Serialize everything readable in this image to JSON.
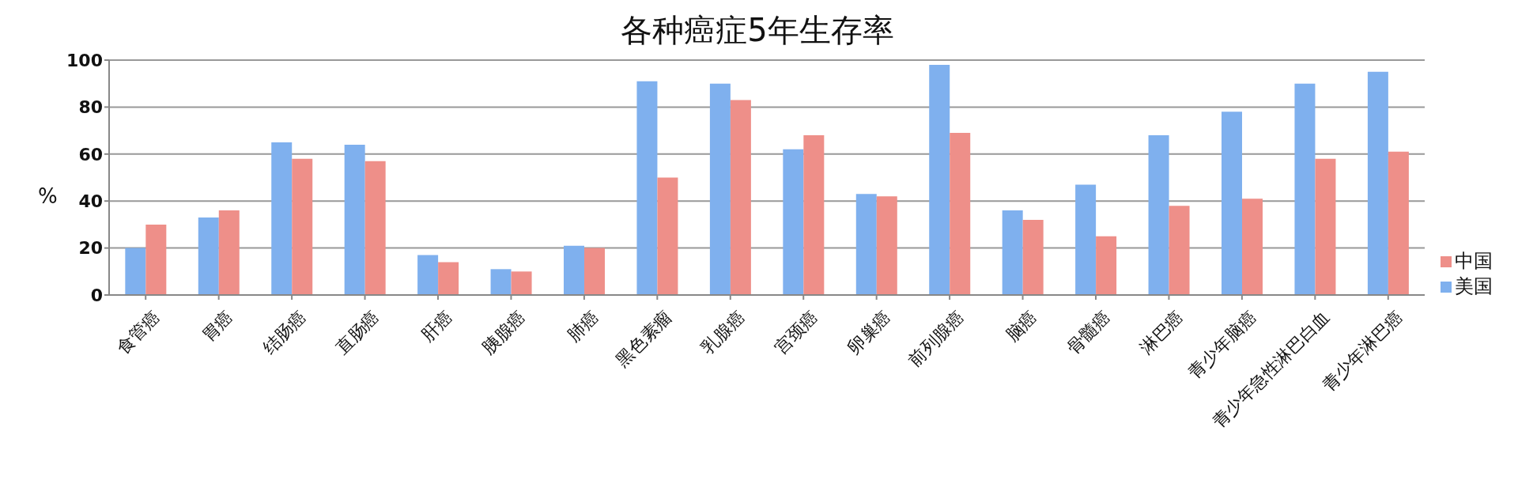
{
  "chart_data": {
    "type": "bar",
    "title": "各种癌症5年生存率",
    "ylabel": "%",
    "categories": [
      "食管癌",
      "胃癌",
      "结肠癌",
      "直肠癌",
      "肝癌",
      "胰腺癌",
      "肺癌",
      "黑色素瘤",
      "乳腺癌",
      "宫颈癌",
      "卵巢癌",
      "前列腺癌",
      "脑癌",
      "骨髓癌",
      "淋巴癌",
      "青少年脑癌",
      "青少年急性淋巴白血",
      "青少年淋巴癌"
    ],
    "series": [
      {
        "name": "美国",
        "color": "#7fb0ee",
        "values": [
          20,
          33,
          65,
          64,
          17,
          11,
          21,
          91,
          90,
          62,
          43,
          98,
          36,
          47,
          68,
          78,
          90,
          95
        ]
      },
      {
        "name": "中国",
        "color": "#ee8f89",
        "values": [
          30,
          36,
          58,
          57,
          14,
          10,
          20,
          50,
          83,
          68,
          42,
          69,
          32,
          25,
          38,
          41,
          58,
          61
        ]
      }
    ],
    "ylim": [
      0,
      100
    ],
    "yticks": [
      0,
      20,
      40,
      60,
      80,
      100
    ],
    "grid": "y",
    "legend": "right"
  }
}
